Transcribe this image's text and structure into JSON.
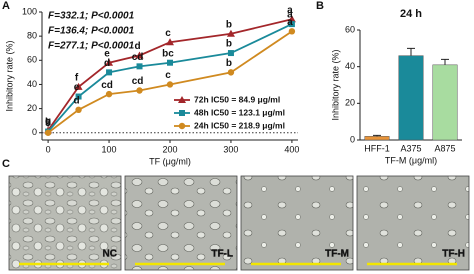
{
  "chart_data": [
    {
      "type": "line",
      "panel": "A",
      "x_label": "TF (μg/ml)",
      "y_label": "Inhibitory rate (%)",
      "x": [
        0,
        50,
        100,
        150,
        200,
        300,
        400
      ],
      "xlim": [
        -10,
        410
      ],
      "xticks": [
        0,
        100,
        200,
        300,
        400
      ],
      "ylim": [
        -6,
        100
      ],
      "yticks": [
        0,
        20,
        40,
        60,
        80,
        100
      ],
      "reference_line": 0,
      "legend": "lower right",
      "series": [
        {
          "name": "72h IC50 = 84.9 μg/ml",
          "color": "#a3262a",
          "marker": "triangle",
          "values": [
            2,
            38,
            58,
            64,
            75,
            82,
            94
          ],
          "letters": [
            "g",
            "f",
            "e",
            "d",
            "c",
            "b",
            "a"
          ]
        },
        {
          "name": "48h IC50 = 123.1 μg/ml",
          "color": "#1a8a9a",
          "marker": "square",
          "values": [
            1,
            30,
            50,
            55,
            58,
            66,
            90
          ],
          "letters": [
            "h",
            "e",
            "d",
            "cd",
            "bc",
            "b",
            "a"
          ]
        },
        {
          "name": "24h IC50 = 218.9 μg/ml",
          "color": "#d08a20",
          "marker": "circle",
          "values": [
            0,
            19,
            32,
            35,
            40,
            50,
            84
          ],
          "letters": [
            "i",
            "d",
            "cd",
            "cd",
            "c",
            "b",
            "a"
          ]
        }
      ],
      "annotations": [
        "F=332.1; P<0.0001",
        "F=136.4; P<0.0001",
        "F=277.1; P<0.0001"
      ]
    },
    {
      "type": "bar",
      "panel": "B",
      "title": "24 h",
      "x_label": "TF-M (μg/ml)",
      "y_label": "Inhibitory rate (%)",
      "categories": [
        "HFF-1",
        "A375",
        "A875"
      ],
      "values": [
        2,
        46,
        41
      ],
      "errors": [
        0.5,
        4,
        3
      ],
      "colors": [
        "#e8943a",
        "#1a8a9a",
        "#a8dca0"
      ],
      "ylim": [
        0,
        60
      ],
      "yticks": [
        0,
        20,
        40,
        60
      ]
    }
  ],
  "panel_c": {
    "label": "C",
    "images": [
      "NC",
      "TF-L",
      "TF-M",
      "TF-H"
    ]
  }
}
